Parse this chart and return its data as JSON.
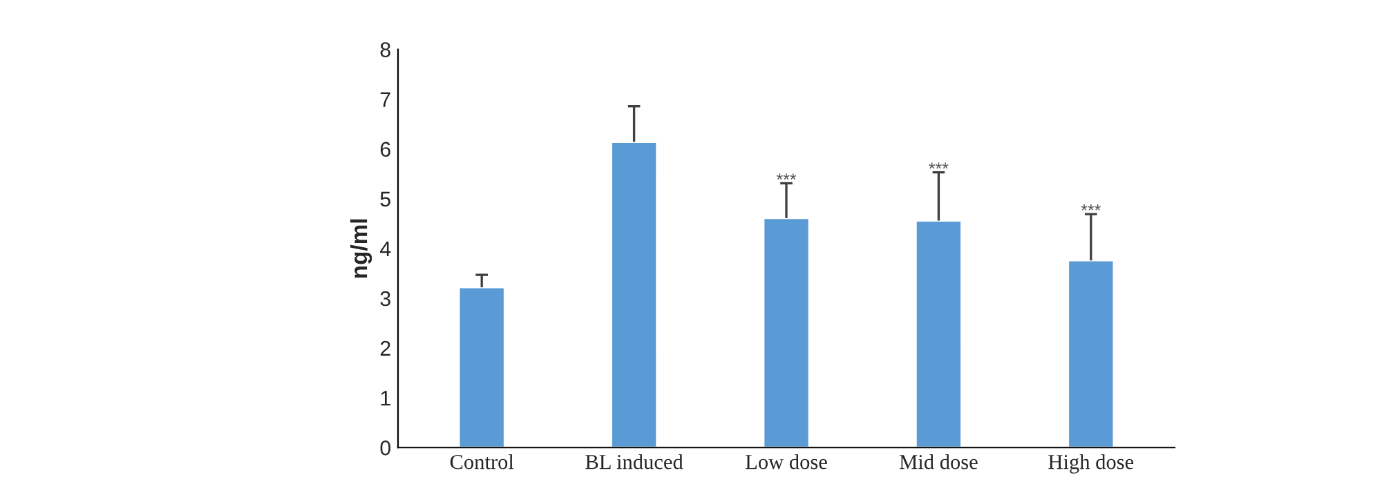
{
  "chart_data": {
    "type": "bar",
    "ylabel": "ng/ml",
    "categories": [
      "Control",
      "BL induced",
      "Low dose",
      "Mid dose",
      "High dose"
    ],
    "values": [
      3.22,
      6.14,
      4.61,
      4.56,
      3.76
    ],
    "errors": [
      [
        3.22,
        3.47
      ],
      [
        6.14,
        6.86
      ],
      [
        4.61,
        5.31
      ],
      [
        4.56,
        5.53
      ],
      [
        3.76,
        4.69
      ]
    ],
    "value_labels": [
      null,
      null,
      "***",
      "***",
      "***"
    ],
    "color": "#5b9bd5",
    "ylim": [
      0,
      8
    ],
    "yticks": [
      0,
      1,
      2,
      3,
      4,
      5,
      6,
      7,
      8
    ],
    "grid": false,
    "legend": false
  }
}
